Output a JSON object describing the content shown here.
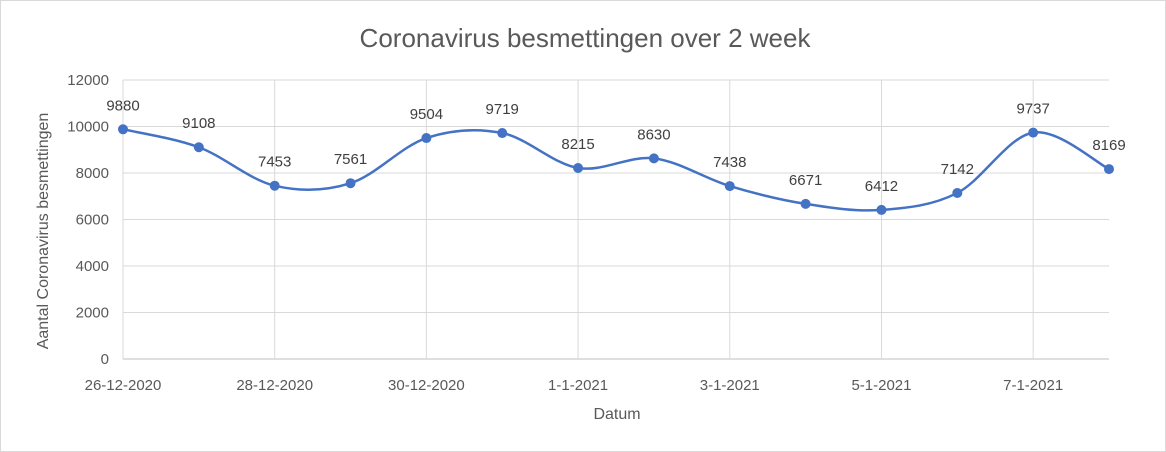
{
  "chart_data": {
    "type": "line",
    "title": "Coronavirus besmettingen over 2 week",
    "xlabel": "Datum",
    "ylabel": "Aantal Coronavirus  besmettingen",
    "x": [
      "26-12-2020",
      "27-12-2020",
      "28-12-2020",
      "29-12-2020",
      "30-12-2020",
      "31-12-2020",
      "1-1-2021",
      "2-1-2021",
      "3-1-2021",
      "4-1-2021",
      "5-1-2021",
      "6-1-2021",
      "7-1-2021",
      "8-1-2021"
    ],
    "x_tick_labels": [
      "26-12-2020",
      "",
      "28-12-2020",
      "",
      "30-12-2020",
      "",
      "1-1-2021",
      "",
      "3-1-2021",
      "",
      "5-1-2021",
      "",
      "7-1-2021",
      ""
    ],
    "series": [
      {
        "values": [
          9880,
          9108,
          7453,
          7561,
          9504,
          9719,
          8215,
          8630,
          7438,
          6671,
          6412,
          7142,
          9737,
          8169
        ]
      }
    ],
    "ylim": [
      0,
      12000
    ],
    "yticks": [
      0,
      2000,
      4000,
      6000,
      8000,
      10000,
      12000
    ],
    "grid": true,
    "smooth": true,
    "legend": "none",
    "colors": {
      "line": "#4472c4",
      "marker": "#4472c4"
    }
  }
}
